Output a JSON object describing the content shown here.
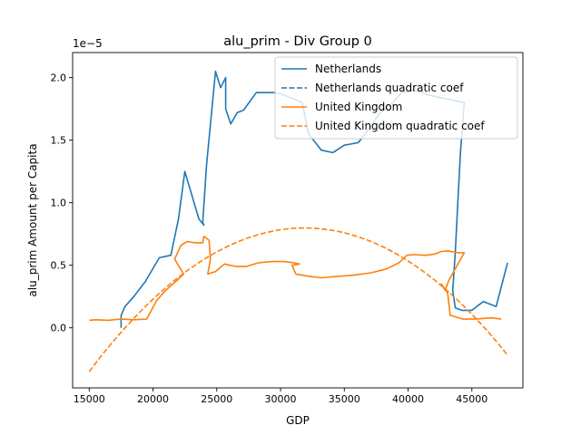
{
  "chart_data": {
    "type": "line",
    "title": "alu_prim - Div Group 0",
    "xlabel": "GDP",
    "ylabel": "alu_prim Amount per Capita",
    "y_multiplier_label": "1e−5",
    "xlim": [
      13700,
      49000
    ],
    "ylim": [
      -0.48,
      2.2
    ],
    "x_ticks": [
      15000,
      20000,
      25000,
      30000,
      35000,
      40000,
      45000
    ],
    "x_tick_labels": [
      "15000",
      "20000",
      "25000",
      "30000",
      "35000",
      "40000",
      "45000"
    ],
    "y_ticks": [
      0.0,
      0.5,
      1.0,
      1.5,
      2.0
    ],
    "y_tick_labels": [
      "0.0",
      "0.5",
      "1.0",
      "1.5",
      "2.0"
    ],
    "grid": false,
    "legend_position": "top-right",
    "series": [
      {
        "name": "Netherlands",
        "style": "solid",
        "color": "#1f77b4",
        "points": [
          [
            17500,
            0.0
          ],
          [
            17500,
            0.1
          ],
          [
            17800,
            0.17
          ],
          [
            18500,
            0.25
          ],
          [
            19400,
            0.37
          ],
          [
            20500,
            0.56
          ],
          [
            21400,
            0.58
          ],
          [
            22000,
            0.87
          ],
          [
            22500,
            1.25
          ],
          [
            23600,
            0.87
          ],
          [
            24000,
            0.82
          ],
          [
            23900,
            0.84
          ],
          [
            24200,
            1.3
          ],
          [
            24900,
            2.05
          ],
          [
            25300,
            1.92
          ],
          [
            25700,
            2.0
          ],
          [
            25700,
            1.75
          ],
          [
            26100,
            1.63
          ],
          [
            26600,
            1.72
          ],
          [
            27100,
            1.74
          ],
          [
            28100,
            1.88
          ],
          [
            29000,
            1.88
          ],
          [
            29500,
            1.88
          ],
          [
            30000,
            1.87
          ],
          [
            30800,
            1.84
          ],
          [
            31700,
            1.8
          ],
          [
            32200,
            1.55
          ],
          [
            33200,
            1.42
          ],
          [
            34100,
            1.4
          ],
          [
            35000,
            1.46
          ],
          [
            36100,
            1.48
          ],
          [
            37000,
            1.6
          ],
          [
            37800,
            1.72
          ],
          [
            38800,
            1.8
          ],
          [
            39500,
            1.88
          ],
          [
            40500,
            1.9
          ],
          [
            41600,
            1.86
          ],
          [
            43000,
            1.83
          ],
          [
            44400,
            1.8
          ],
          [
            44100,
            1.4
          ],
          [
            43900,
            1.0
          ],
          [
            43700,
            0.6
          ],
          [
            43500,
            0.3
          ],
          [
            43700,
            0.16
          ],
          [
            44200,
            0.14
          ],
          [
            45000,
            0.14
          ],
          [
            45900,
            0.21
          ],
          [
            46900,
            0.17
          ],
          [
            47800,
            0.52
          ]
        ]
      },
      {
        "name": "Netherlands quadratic coef",
        "style": "dashed",
        "color": "#1f77b4",
        "points": []
      },
      {
        "name": "United Kingdom",
        "style": "solid",
        "color": "#ff7f0e",
        "points": [
          [
            15000,
            0.06
          ],
          [
            15500,
            0.065
          ],
          [
            16500,
            0.06
          ],
          [
            17500,
            0.07
          ],
          [
            18500,
            0.065
          ],
          [
            19500,
            0.07
          ],
          [
            20300,
            0.22
          ],
          [
            21000,
            0.3
          ],
          [
            21900,
            0.38
          ],
          [
            22400,
            0.43
          ],
          [
            21700,
            0.55
          ],
          [
            22200,
            0.66
          ],
          [
            22700,
            0.69
          ],
          [
            23300,
            0.68
          ],
          [
            23900,
            0.68
          ],
          [
            24000,
            0.73
          ],
          [
            24400,
            0.7
          ],
          [
            24500,
            0.55
          ],
          [
            24300,
            0.43
          ],
          [
            24900,
            0.45
          ],
          [
            25600,
            0.51
          ],
          [
            26500,
            0.49
          ],
          [
            27300,
            0.49
          ],
          [
            28300,
            0.52
          ],
          [
            29300,
            0.53
          ],
          [
            30300,
            0.53
          ],
          [
            31000,
            0.52
          ],
          [
            31500,
            0.51
          ],
          [
            30900,
            0.5
          ],
          [
            31200,
            0.43
          ],
          [
            32300,
            0.41
          ],
          [
            33200,
            0.4
          ],
          [
            34400,
            0.41
          ],
          [
            35700,
            0.42
          ],
          [
            37100,
            0.44
          ],
          [
            38300,
            0.47
          ],
          [
            39300,
            0.52
          ],
          [
            39900,
            0.58
          ],
          [
            40400,
            0.585
          ],
          [
            41400,
            0.58
          ],
          [
            42100,
            0.59
          ],
          [
            42600,
            0.61
          ],
          [
            43100,
            0.615
          ],
          [
            43900,
            0.6
          ],
          [
            44400,
            0.6
          ],
          [
            43800,
            0.49
          ],
          [
            43200,
            0.38
          ],
          [
            42900,
            0.3
          ],
          [
            42600,
            0.35
          ],
          [
            43100,
            0.28
          ],
          [
            43300,
            0.1
          ],
          [
            44300,
            0.07
          ],
          [
            45300,
            0.07
          ],
          [
            46500,
            0.08
          ],
          [
            47300,
            0.07
          ]
        ]
      },
      {
        "name": "United Kingdom quadratic coef",
        "style": "dashed",
        "color": "#ff7f0e",
        "quadratic": {
          "vertex_x": 31900,
          "vertex_y": 0.798,
          "reference": [
            15000,
            -0.35
          ]
        },
        "x_range": [
          15000,
          47800
        ]
      }
    ]
  }
}
